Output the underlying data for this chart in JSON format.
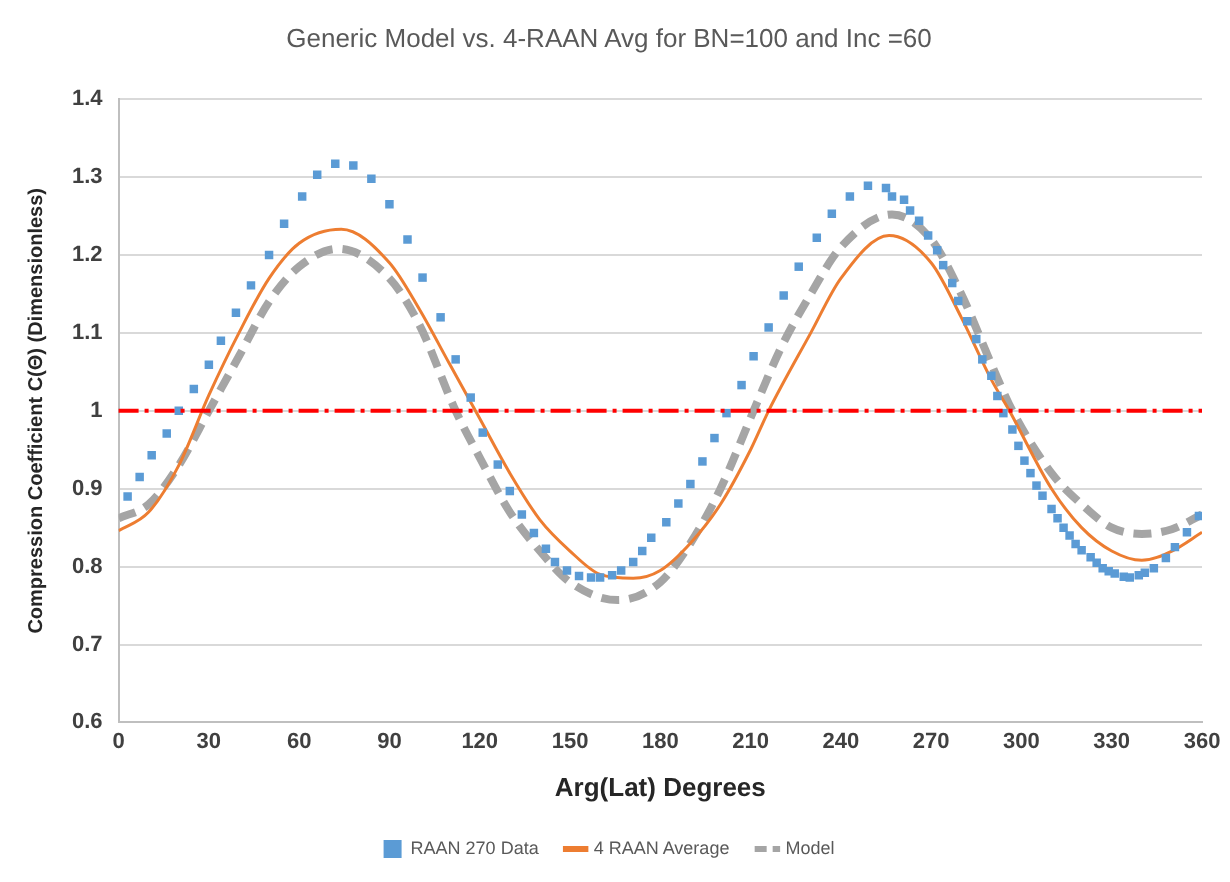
{
  "chart_data": {
    "type": "line",
    "title": "Generic Model vs. 4-RAAN Avg for BN=100 and Inc =60",
    "xlabel": "Arg(Lat) Degrees",
    "ylabel": "Compression Coefficient C(Θ) (Dimensionless)",
    "xlim": [
      0,
      360
    ],
    "xticks": [
      0,
      30,
      60,
      90,
      120,
      150,
      180,
      210,
      240,
      270,
      300,
      330,
      360
    ],
    "ylim": [
      0.6,
      1.4
    ],
    "yticks": [
      0.6,
      0.7,
      0.8,
      0.9,
      1,
      1.1,
      1.2,
      1.3,
      1.4
    ],
    "grid": "y",
    "legend": "bottom",
    "ref_lines": [
      {
        "axis": "y",
        "value": 1.0,
        "color": "#ff0000",
        "line_style": "dashed"
      }
    ],
    "series": [
      {
        "name": "RAAN 270 Data",
        "type": "scatter",
        "marker": "square",
        "color": "#5b9bd5",
        "x": [
          3,
          7,
          11,
          16,
          20,
          25,
          30,
          34,
          39,
          44,
          50,
          55,
          61,
          66,
          72,
          78,
          84,
          90,
          96,
          101,
          107,
          112,
          117,
          121,
          126,
          130,
          134,
          138,
          142,
          145,
          149,
          153,
          157,
          160,
          164,
          167,
          171,
          174,
          177,
          182,
          186,
          190,
          194,
          198,
          202,
          207,
          211,
          216,
          221,
          226,
          232,
          237,
          243,
          249,
          255,
          257,
          261,
          263,
          266,
          269,
          272,
          274,
          277,
          279,
          282,
          285,
          287,
          290,
          292,
          294,
          297,
          299,
          301,
          303,
          305,
          307,
          310,
          312,
          314,
          316,
          318,
          320,
          323,
          325,
          327,
          329,
          331,
          334,
          336,
          339,
          341,
          344,
          348,
          351,
          355,
          359
        ],
        "values": [
          0.89,
          0.915,
          0.943,
          0.971,
          1.0,
          1.028,
          1.059,
          1.09,
          1.126,
          1.161,
          1.2,
          1.24,
          1.275,
          1.303,
          1.317,
          1.315,
          1.298,
          1.265,
          1.22,
          1.171,
          1.12,
          1.066,
          1.017,
          0.972,
          0.931,
          0.897,
          0.867,
          0.843,
          0.823,
          0.806,
          0.795,
          0.788,
          0.786,
          0.786,
          0.789,
          0.795,
          0.806,
          0.82,
          0.837,
          0.857,
          0.881,
          0.906,
          0.935,
          0.965,
          0.997,
          1.033,
          1.07,
          1.107,
          1.148,
          1.185,
          1.222,
          1.253,
          1.275,
          1.289,
          1.286,
          1.275,
          1.271,
          1.257,
          1.244,
          1.225,
          1.206,
          1.187,
          1.164,
          1.141,
          1.115,
          1.092,
          1.066,
          1.045,
          1.019,
          0.997,
          0.976,
          0.955,
          0.936,
          0.92,
          0.904,
          0.891,
          0.874,
          0.862,
          0.85,
          0.84,
          0.829,
          0.821,
          0.812,
          0.805,
          0.798,
          0.794,
          0.791,
          0.787,
          0.786,
          0.789,
          0.792,
          0.798,
          0.811,
          0.825,
          0.844,
          0.865
        ]
      },
      {
        "name": "4 RAAN Average",
        "type": "line",
        "line_style": "solid",
        "marker": "none",
        "color": "#ed7d31",
        "x": [
          0,
          10,
          20,
          30,
          40,
          50,
          60,
          74,
          90,
          100,
          110,
          120,
          130,
          140,
          150,
          160,
          171,
          180,
          190,
          200,
          210,
          216,
          230,
          240,
          256,
          270,
          280,
          290,
          296,
          310,
          320,
          330,
          340,
          350,
          360
        ],
        "values": [
          0.846,
          0.87,
          0.93,
          1.02,
          1.1,
          1.17,
          1.215,
          1.233,
          1.19,
          1.13,
          1.06,
          0.99,
          0.92,
          0.86,
          0.82,
          0.79,
          0.785,
          0.795,
          0.83,
          0.88,
          0.95,
          1.0,
          1.1,
          1.17,
          1.225,
          1.19,
          1.12,
          1.04,
          1.0,
          0.9,
          0.85,
          0.82,
          0.808,
          0.82,
          0.844
        ]
      },
      {
        "name": "Model",
        "type": "line",
        "line_style": "dashed",
        "marker": "none",
        "color": "#a5a5a5",
        "x": [
          0,
          10,
          20,
          30,
          40,
          50,
          60,
          73,
          90,
          100,
          112,
          120,
          130,
          140,
          150,
          166,
          180,
          190,
          200,
          211,
          220,
          230,
          240,
          257,
          270,
          280,
          290,
          297,
          310,
          320,
          330,
          340,
          350,
          360
        ],
        "values": [
          0.862,
          0.88,
          0.93,
          1.0,
          1.07,
          1.14,
          1.185,
          1.208,
          1.17,
          1.11,
          1.0,
          0.94,
          0.87,
          0.82,
          0.78,
          0.757,
          0.78,
          0.83,
          0.9,
          1.0,
          1.08,
          1.15,
          1.21,
          1.252,
          1.22,
          1.15,
          1.06,
          1.0,
          0.92,
          0.88,
          0.85,
          0.842,
          0.848,
          0.867
        ]
      }
    ]
  }
}
